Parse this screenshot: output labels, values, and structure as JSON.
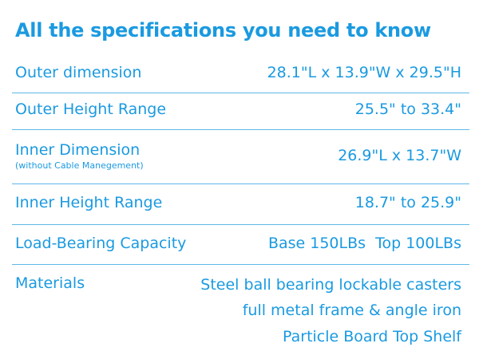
{
  "title": "All the specifications you need to know",
  "rows": [
    {
      "label": "Outer dimension",
      "values": [
        "28.1\"L x 13.9\"W x 29.5\"H"
      ]
    },
    {
      "label": "Outer Height Range",
      "values": [
        "25.5\" to 33.4\""
      ]
    },
    {
      "label": "Inner Dimension",
      "sublabel": "(without Cable Manegement)",
      "values": [
        "26.9\"L x 13.7\"W"
      ]
    },
    {
      "label": "Inner Height Range",
      "values": [
        "18.7\" to 25.9\""
      ]
    },
    {
      "label": "Load-Bearing Capacity",
      "values": [
        "Base 150LBs  Top 100LBs"
      ]
    },
    {
      "label": "Materials",
      "values": [
        "Steel ball bearing lockable casters",
        "full metal frame & angle iron",
        "Particle Board Top Shelf"
      ]
    }
  ]
}
